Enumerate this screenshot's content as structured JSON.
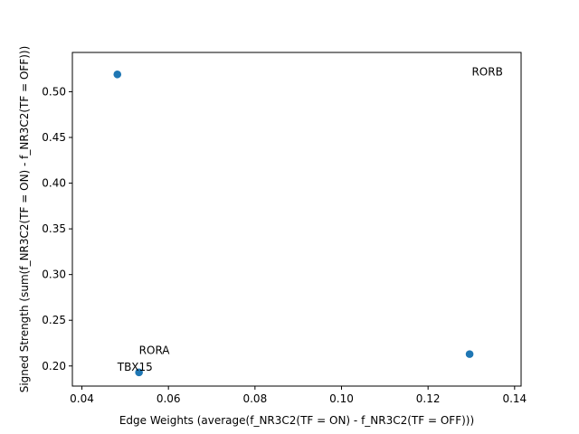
{
  "chart_data": {
    "type": "scatter",
    "xlabel": "Edge Weights (average(f_NR3C2(TF = ON) - f_NR3C2(TF = OFF)))",
    "ylabel": "Signed Strength (sum(f_NR3C2(TF = ON) - f_NR3C2(TF = OFF)))",
    "xlim": [
      0.0378,
      0.1415
    ],
    "ylim": [
      0.178,
      0.543
    ],
    "xticks": [
      0.04,
      0.06,
      0.08,
      0.1,
      0.12,
      0.14
    ],
    "xtick_labels": [
      "0.04",
      "0.06",
      "0.08",
      "0.10",
      "0.12",
      "0.14"
    ],
    "yticks": [
      0.2,
      0.25,
      0.3,
      0.35,
      0.4,
      0.45,
      0.5
    ],
    "ytick_labels": [
      "0.20",
      "0.25",
      "0.30",
      "0.35",
      "0.40",
      "0.45",
      "0.50"
    ],
    "grid": false,
    "marker_color": "#1f77b4",
    "points": [
      {
        "x": 0.0482,
        "y": 0.519
      },
      {
        "x": 0.0532,
        "y": 0.193
      },
      {
        "x": 0.1296,
        "y": 0.213
      }
    ],
    "annotations": [
      {
        "text": "RORB",
        "x": 0.1301,
        "y": 0.518
      },
      {
        "text": "RORA",
        "x": 0.0532,
        "y": 0.213
      },
      {
        "text": "TBX15",
        "x": 0.0482,
        "y": 0.195
      }
    ]
  }
}
